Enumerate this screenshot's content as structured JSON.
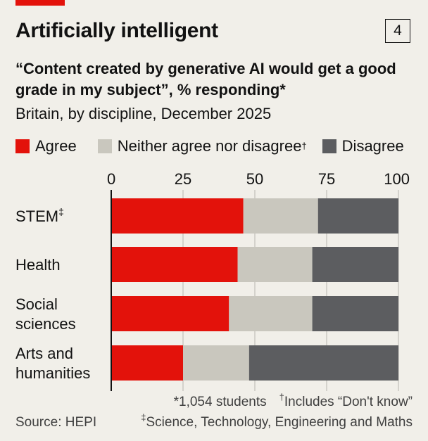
{
  "header": {
    "title": "Artificially intelligent",
    "badge": "4",
    "subtitle": "“Content created by generative AI would get a good grade in my subject”, % responding*",
    "subtitle2": "Britain, by discipline, December 2025"
  },
  "legend": {
    "agree": "Agree",
    "neither": "Neither agree nor disagree",
    "neither_mark": "†",
    "disagree": "Disagree"
  },
  "colors": {
    "agree": "#e3120b",
    "neither": "#c9c7be",
    "disagree": "#5c5d60",
    "background": "#f1efe9",
    "accent_tag": "#e3120b"
  },
  "footer": {
    "source": "Source: HEPI",
    "note_students": "*1,054 students",
    "note_dont_know_mark": "†",
    "note_dont_know": "Includes “Don't know”",
    "note_stem_mark": "‡",
    "note_stem": "Science, Technology, Engineering and Maths"
  },
  "chart_data": {
    "type": "bar",
    "orientation": "horizontal",
    "stacked": true,
    "categories": [
      "STEM‡",
      "Health",
      "Social sciences",
      "Arts and humanities"
    ],
    "category_lines": [
      [
        "STEM‡"
      ],
      [
        "Health"
      ],
      [
        "Social",
        "sciences"
      ],
      [
        "Arts and",
        "humanities"
      ]
    ],
    "series": [
      {
        "name": "Agree",
        "values": [
          46,
          44,
          41,
          25
        ]
      },
      {
        "name": "Neither agree nor disagree†",
        "values": [
          26,
          26,
          29,
          23
        ]
      },
      {
        "name": "Disagree",
        "values": [
          28,
          30,
          30,
          52
        ]
      }
    ],
    "xlim": [
      0,
      100
    ],
    "xticks": [
      0,
      25,
      50,
      75,
      100
    ],
    "tick_position": "top",
    "grid": true,
    "legend_position": "top-left"
  }
}
